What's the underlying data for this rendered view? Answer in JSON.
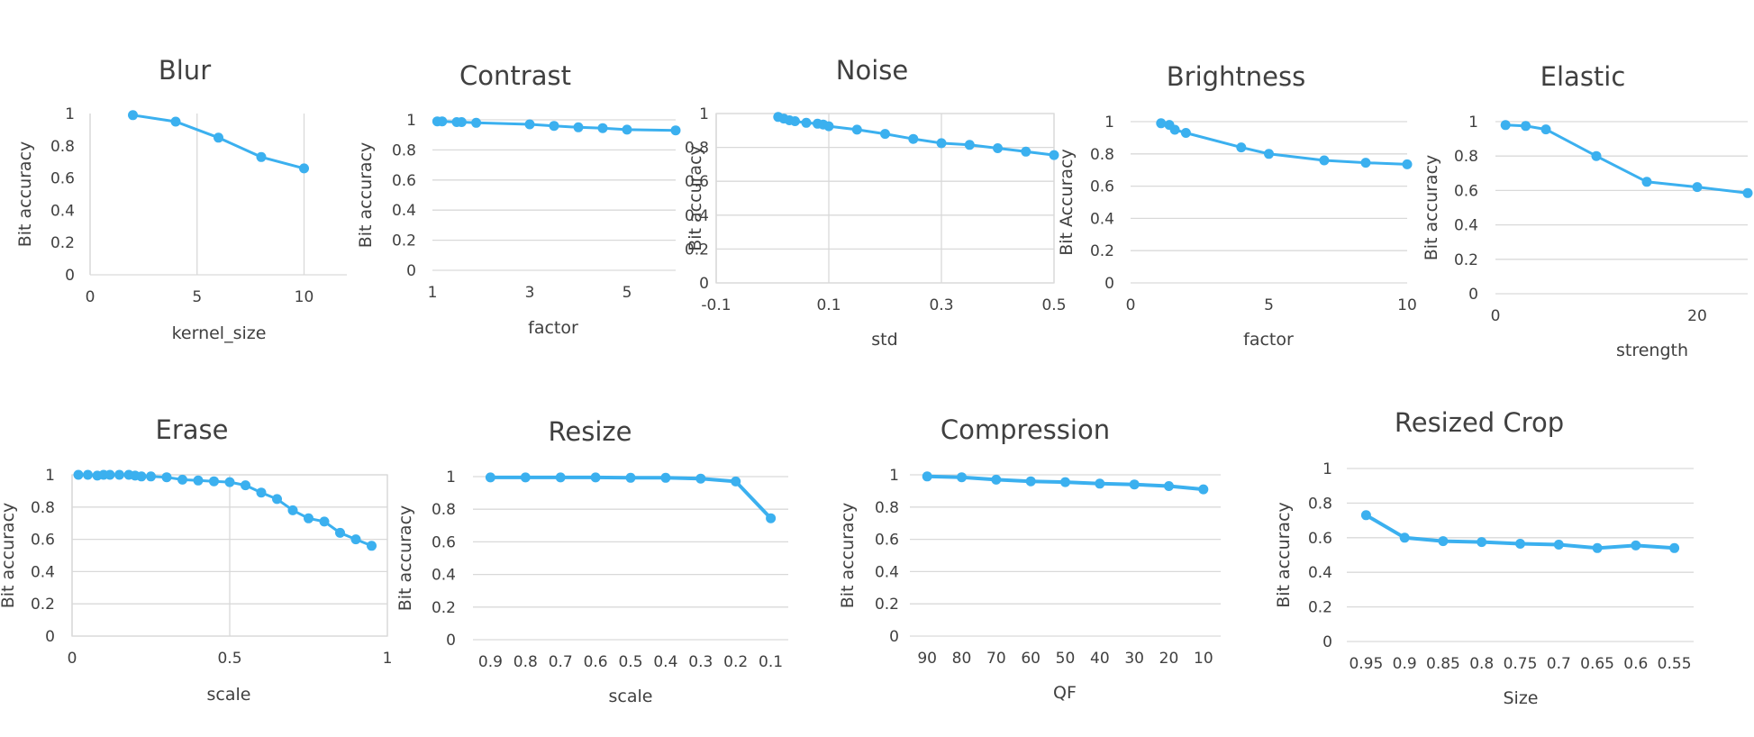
{
  "colors": {
    "series": "#3bb0ef",
    "grid": "#d9d9d9",
    "text": "#404040"
  },
  "chart_data": [
    {
      "id": "blur",
      "type": "scatter",
      "title": "Blur",
      "xlabel": "kernel_size",
      "ylabel": "Bit accuracy",
      "xlim": [
        0,
        12
      ],
      "ylim": [
        0,
        1
      ],
      "xticks": [
        "0",
        "5",
        "10"
      ],
      "yticks": [
        "0",
        "0.2",
        "0.4",
        "0.6",
        "0.8",
        "1"
      ],
      "grid": "vertical",
      "series": [
        {
          "x": [
            2,
            4,
            6,
            8,
            10
          ],
          "y": [
            0.99,
            0.95,
            0.85,
            0.73,
            0.66
          ]
        }
      ]
    },
    {
      "id": "contrast",
      "type": "scatter",
      "title": "Contrast",
      "xlabel": "factor",
      "ylabel": "Bit accuracy",
      "xlim": [
        1,
        6
      ],
      "ylim": [
        0,
        1
      ],
      "xticks": [
        "1",
        "3",
        "5"
      ],
      "yticks": [
        "0",
        "0.2",
        "0.4",
        "0.6",
        "0.8",
        "1"
      ],
      "grid": "horizontal",
      "series": [
        {
          "x": [
            1.1,
            1.2,
            1.5,
            1.6,
            1.9,
            3,
            3.5,
            4,
            4.5,
            5,
            6
          ],
          "y": [
            0.99,
            0.99,
            0.985,
            0.985,
            0.98,
            0.97,
            0.96,
            0.95,
            0.945,
            0.935,
            0.93
          ]
        }
      ]
    },
    {
      "id": "noise",
      "type": "scatter",
      "title": "Noise",
      "xlabel": "std",
      "ylabel": "Bit accuracy",
      "xlim": [
        -0.1,
        0.5
      ],
      "ylim": [
        0,
        1
      ],
      "xticks": [
        "-0.1",
        "0.1",
        "0.3",
        "0.5"
      ],
      "yticks": [
        "0",
        "0.2",
        "0.4",
        "0.6",
        "0.8",
        "1"
      ],
      "grid": "both",
      "series": [
        {
          "x": [
            0.01,
            0.02,
            0.03,
            0.04,
            0.06,
            0.08,
            0.09,
            0.1,
            0.15,
            0.2,
            0.25,
            0.3,
            0.35,
            0.4,
            0.45,
            0.5
          ],
          "y": [
            0.98,
            0.97,
            0.96,
            0.955,
            0.945,
            0.94,
            0.935,
            0.925,
            0.905,
            0.88,
            0.85,
            0.825,
            0.815,
            0.795,
            0.775,
            0.755
          ]
        }
      ]
    },
    {
      "id": "brightness",
      "type": "scatter",
      "title": "Brightness",
      "xlabel": "factor",
      "ylabel": "Bit Accuracy",
      "xlim": [
        0,
        10
      ],
      "ylim": [
        0,
        1
      ],
      "xticks": [
        "0",
        "5",
        "10"
      ],
      "yticks": [
        "0",
        "0.2",
        "0.4",
        "0.6",
        "0.8",
        "1"
      ],
      "grid": "horizontal",
      "series": [
        {
          "x": [
            1.1,
            1.4,
            1.6,
            2,
            4,
            5,
            7,
            8.5,
            10
          ],
          "y": [
            0.99,
            0.98,
            0.95,
            0.93,
            0.84,
            0.8,
            0.76,
            0.745,
            0.735
          ]
        }
      ]
    },
    {
      "id": "elastic",
      "type": "scatter",
      "title": "Elastic",
      "xlabel": "strength",
      "ylabel": "Bit accuracy",
      "xlim": [
        0,
        25
      ],
      "ylim": [
        0,
        1
      ],
      "xticks": [
        "0",
        "20"
      ],
      "yticks": [
        "0",
        "0.2",
        "0.4",
        "0.6",
        "0.8",
        "1"
      ],
      "grid": "horizontal",
      "series": [
        {
          "x": [
            1,
            3,
            5,
            10,
            15,
            20,
            25
          ],
          "y": [
            0.98,
            0.975,
            0.955,
            0.8,
            0.65,
            0.62,
            0.585
          ]
        }
      ]
    },
    {
      "id": "erase",
      "type": "scatter",
      "title": "Erase",
      "xlabel": "scale",
      "ylabel": "Bit accuracy",
      "xlim": [
        0,
        1
      ],
      "ylim": [
        0,
        1
      ],
      "xticks": [
        "0",
        "0.5",
        "1"
      ],
      "yticks": [
        "0",
        "0.2",
        "0.4",
        "0.6",
        "0.8",
        "1"
      ],
      "grid": "both",
      "series": [
        {
          "x": [
            0.02,
            0.05,
            0.08,
            0.1,
            0.12,
            0.15,
            0.18,
            0.2,
            0.22,
            0.25,
            0.3,
            0.35,
            0.4,
            0.45,
            0.5,
            0.55,
            0.6,
            0.65,
            0.7,
            0.75,
            0.8,
            0.85,
            0.9,
            0.95
          ],
          "y": [
            1.0,
            1.0,
            0.995,
            1.0,
            1.0,
            1.0,
            1.0,
            0.995,
            0.99,
            0.99,
            0.985,
            0.97,
            0.965,
            0.96,
            0.955,
            0.935,
            0.89,
            0.85,
            0.78,
            0.73,
            0.71,
            0.64,
            0.6,
            0.56
          ]
        }
      ]
    },
    {
      "id": "resize",
      "type": "line",
      "title": "Resize",
      "xlabel": "scale",
      "ylabel": "Bit accuracy",
      "ylim": [
        0,
        1
      ],
      "categories": [
        "0.9",
        "0.8",
        "0.7",
        "0.6",
        "0.5",
        "0.4",
        "0.3",
        "0.2",
        "0.1"
      ],
      "yticks": [
        "0",
        "0.2",
        "0.4",
        "0.6",
        "0.8",
        "1"
      ],
      "grid": "horizontal",
      "series": [
        {
          "values": [
            0.995,
            0.995,
            0.995,
            0.995,
            0.993,
            0.993,
            0.988,
            0.97,
            0.745
          ]
        }
      ]
    },
    {
      "id": "compression",
      "type": "line",
      "title": "Compression",
      "xlabel": "QF",
      "ylabel": "Bit accuracy",
      "ylim": [
        0,
        1
      ],
      "categories": [
        "90",
        "80",
        "70",
        "60",
        "50",
        "40",
        "30",
        "20",
        "10"
      ],
      "yticks": [
        "0",
        "0.2",
        "0.4",
        "0.6",
        "0.8",
        "1"
      ],
      "grid": "horizontal",
      "series": [
        {
          "values": [
            0.99,
            0.985,
            0.97,
            0.96,
            0.955,
            0.945,
            0.94,
            0.93,
            0.91
          ]
        }
      ]
    },
    {
      "id": "resized-crop",
      "type": "line",
      "title": "Resized Crop",
      "xlabel": "Size",
      "ylabel": "Bit accuracy",
      "ylim": [
        0,
        1
      ],
      "categories": [
        "0.95",
        "0.9",
        "0.85",
        "0.8",
        "0.75",
        "0.7",
        "0.65",
        "0.6",
        "0.55"
      ],
      "yticks": [
        "0",
        "0.2",
        "0.4",
        "0.6",
        "0.8",
        "1"
      ],
      "grid": "horizontal",
      "series": [
        {
          "values": [
            0.73,
            0.6,
            0.58,
            0.575,
            0.565,
            0.56,
            0.54,
            0.555,
            0.54
          ]
        }
      ]
    }
  ]
}
